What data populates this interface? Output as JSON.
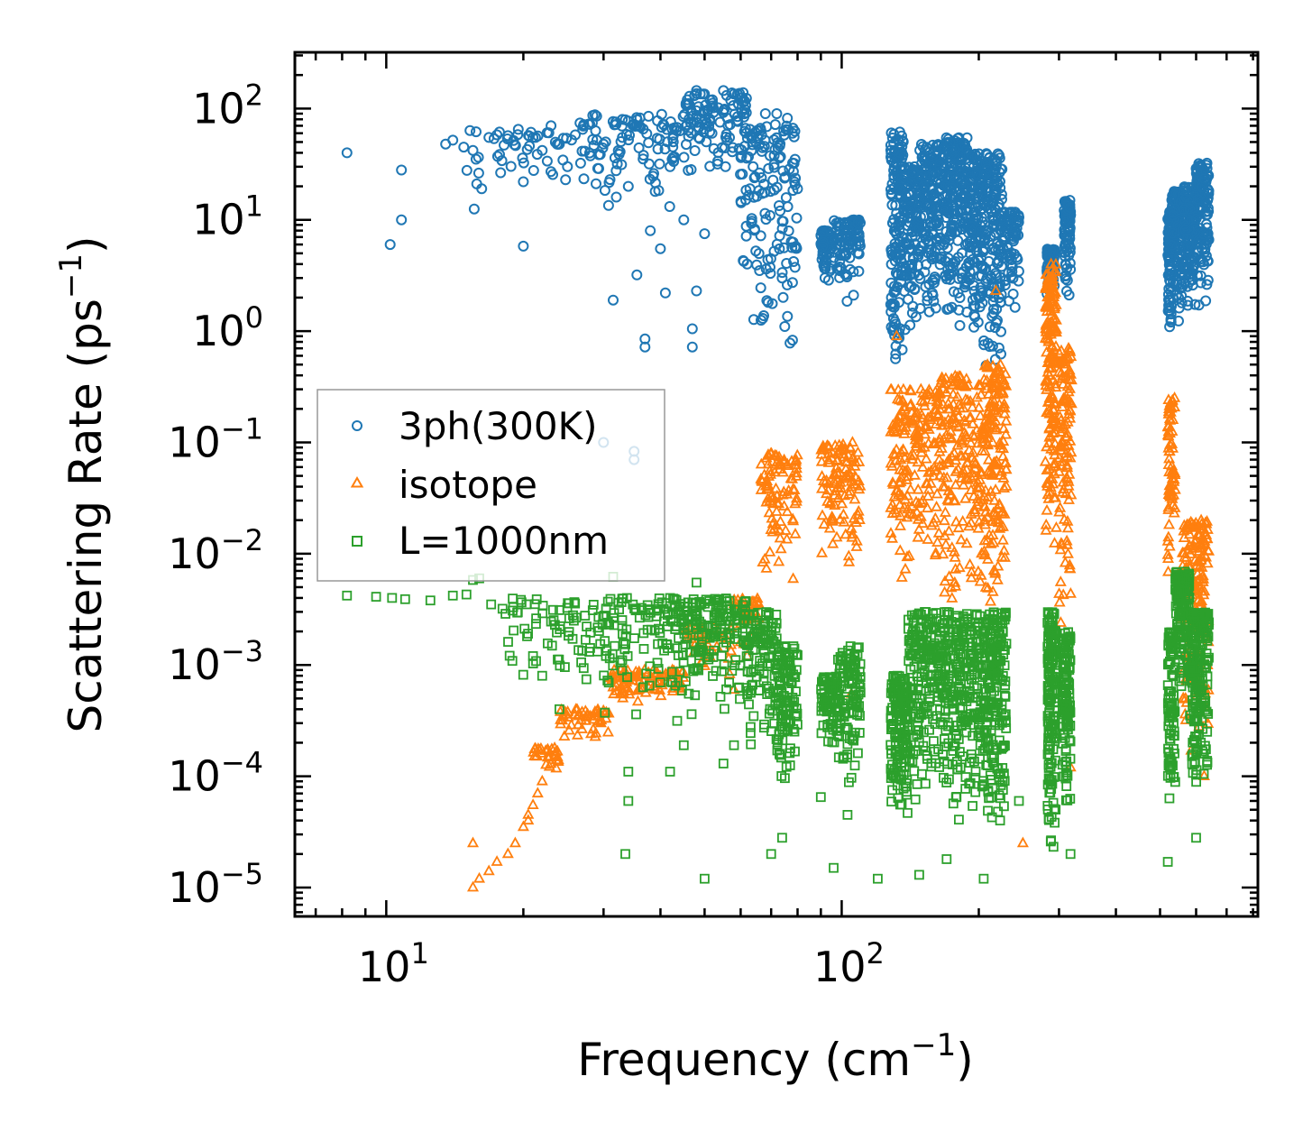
{
  "chart_data": {
    "type": "scatter",
    "xscale": "log",
    "yscale": "log",
    "xlim": [
      6.3,
      820
    ],
    "ylim": [
      5.5e-06,
      320
    ],
    "xlabel": "Frequency (cm",
    "xlabel_sup": "−1",
    "xlabel_end": ")",
    "ylabel": "Scattering Rate (ps",
    "ylabel_sup": "−1",
    "ylabel_end": ")",
    "x_ticks": [
      {
        "value": 10,
        "base": "10",
        "exp": "1"
      },
      {
        "value": 100,
        "base": "10",
        "exp": "2"
      }
    ],
    "y_ticks": [
      {
        "value": 100,
        "base": "10",
        "exp": "2"
      },
      {
        "value": 10,
        "base": "10",
        "exp": "1"
      },
      {
        "value": 1,
        "base": "10",
        "exp": "0"
      },
      {
        "value": 0.1,
        "base": "10",
        "exp": "−1"
      },
      {
        "value": 0.01,
        "base": "10",
        "exp": "−2"
      },
      {
        "value": 0.001,
        "base": "10",
        "exp": "−3"
      },
      {
        "value": 0.0001,
        "base": "10",
        "exp": "−4"
      },
      {
        "value": 1e-05,
        "base": "10",
        "exp": "−5"
      }
    ],
    "legend_position": "center-left",
    "series": [
      {
        "name": "3ph(300K)",
        "marker": "circle",
        "color": "#1f77b4",
        "points": [
          [
            8.2,
            40
          ],
          [
            10.2,
            6
          ],
          [
            10.8,
            28
          ],
          [
            10.8,
            10
          ],
          [
            13.5,
            48
          ],
          [
            14,
            52
          ],
          [
            14.8,
            45
          ],
          [
            15.5,
            42
          ],
          [
            15.6,
            12.5
          ],
          [
            15.8,
            21
          ],
          [
            16.2,
            19
          ],
          [
            16.8,
            55
          ],
          [
            17.5,
            58
          ],
          [
            18.5,
            57
          ],
          [
            19.5,
            65
          ],
          [
            20,
            22
          ],
          [
            20,
            5.8
          ],
          [
            21,
            55
          ],
          [
            22,
            42
          ],
          [
            23,
            70
          ],
          [
            24,
            48
          ],
          [
            25,
            30
          ],
          [
            26,
            58
          ],
          [
            27,
            65
          ],
          [
            28,
            72
          ],
          [
            29,
            52
          ],
          [
            30,
            48
          ],
          [
            30,
            0.1
          ],
          [
            31,
            23
          ],
          [
            31.5,
            1.9
          ],
          [
            32,
            16
          ],
          [
            33,
            55
          ],
          [
            34,
            20
          ],
          [
            35,
            0.083
          ],
          [
            35,
            0.07
          ],
          [
            35.5,
            3.2
          ],
          [
            37,
            0.85
          ],
          [
            37,
            0.72
          ],
          [
            38,
            8
          ],
          [
            40,
            5.5
          ],
          [
            41,
            2.2
          ],
          [
            42,
            30
          ],
          [
            45,
            10
          ],
          [
            47,
            1.05
          ],
          [
            47,
            0.72
          ],
          [
            48,
            2.3
          ],
          [
            48,
            145
          ],
          [
            50,
            7.5
          ],
          [
            52,
            120
          ],
          [
            55,
            145
          ],
          [
            58,
            135
          ],
          [
            60,
            125
          ],
          [
            62,
            4
          ],
          [
            66,
            3.5
          ],
          [
            68,
            90
          ],
          [
            72,
            90
          ],
          [
            74,
            3
          ],
          [
            75,
            1.1
          ],
          [
            76,
            82
          ],
          [
            77,
            0.78
          ],
          [
            78,
            0.83
          ],
          [
            78,
            60
          ],
          [
            79,
            35
          ],
          [
            80,
            19
          ]
        ],
        "clusters": [
          [
            15,
            18,
            20,
            70,
            12,
            0.45
          ],
          [
            18,
            28,
            14,
            75,
            40,
            0.4
          ],
          [
            28,
            45,
            10,
            90,
            90,
            0.35
          ],
          [
            45,
            62,
            12,
            140,
            110,
            0.35
          ],
          [
            60,
            80,
            1.0,
            80,
            140,
            0.6
          ],
          [
            90,
            95,
            2.0,
            8,
            80,
            0.3
          ],
          [
            96,
            110,
            1.7,
            10,
            90,
            0.3
          ],
          [
            128,
            137,
            0.5,
            62,
            140,
            0.7
          ],
          [
            137,
            148,
            1.0,
            30,
            120,
            0.55
          ],
          [
            148,
            168,
            0.9,
            48,
            170,
            0.5
          ],
          [
            168,
            190,
            0.9,
            55,
            200,
            0.5
          ],
          [
            190,
            205,
            0.6,
            40,
            130,
            0.55
          ],
          [
            205,
            225,
            0.45,
            40,
            150,
            0.55
          ],
          [
            225,
            245,
            1.0,
            12,
            70,
            0.4
          ],
          [
            282,
            294,
            1.8,
            5.5,
            70,
            0.4
          ],
          [
            308,
            318,
            1.5,
            15,
            90,
            0.4
          ],
          [
            520,
            530,
            0.9,
            12,
            80,
            0.5
          ],
          [
            530,
            560,
            1.2,
            18,
            120,
            0.45
          ],
          [
            560,
            600,
            1.3,
            20,
            140,
            0.45
          ],
          [
            600,
            640,
            1.4,
            33,
            120,
            0.45
          ]
        ]
      },
      {
        "name": "isotope",
        "marker": "triangle",
        "color": "#ff7f0e",
        "points": [
          [
            15.5,
            1e-05
          ],
          [
            16,
            1.2e-05
          ],
          [
            16.8,
            1.4e-05
          ],
          [
            17.5,
            1.7e-05
          ],
          [
            18.5,
            2e-05
          ],
          [
            19.2,
            2.5e-05
          ],
          [
            20,
            3.5e-05
          ],
          [
            20.5,
            4.5e-05
          ],
          [
            21,
            5.5e-05
          ],
          [
            21.5,
            7e-05
          ],
          [
            22,
            9e-05
          ],
          [
            15.5,
            2.5e-05
          ],
          [
            20.5,
            4e-05
          ],
          [
            58,
            0.0006
          ],
          [
            62,
            0.0012
          ],
          [
            105,
            0.00055
          ],
          [
            132,
            0.9
          ],
          [
            218,
            2.3
          ],
          [
            250,
            2.5e-05
          ],
          [
            318,
            0.00012
          ],
          [
            538,
            0.25
          ],
          [
            585,
            0.00017
          ],
          [
            625,
            0.0001
          ]
        ],
        "clusters": [
          [
            21,
            24,
            9e-05,
            0.00018,
            30,
            0.3
          ],
          [
            24,
            31,
            0.00016,
            0.0004,
            50,
            0.3
          ],
          [
            31,
            37,
            0.00035,
            0.0009,
            50,
            0.3
          ],
          [
            37,
            45,
            0.00035,
            0.0009,
            45,
            0.3
          ],
          [
            45,
            58,
            0.0006,
            0.0022,
            45,
            0.3
          ],
          [
            58,
            66,
            0.0012,
            0.004,
            40,
            0.3
          ],
          [
            66,
            80,
            0.004,
            0.08,
            90,
            0.4
          ],
          [
            90,
            110,
            0.006,
            0.1,
            120,
            0.45
          ],
          [
            128,
            165,
            0.004,
            0.3,
            200,
            0.5
          ],
          [
            165,
            205,
            0.003,
            0.4,
            190,
            0.5
          ],
          [
            205,
            230,
            0.003,
            0.5,
            160,
            0.55
          ],
          [
            280,
            296,
            0.01,
            4,
            170,
            0.55
          ],
          [
            300,
            320,
            0.002,
            0.7,
            110,
            0.55
          ],
          [
            520,
            540,
            0.005,
            0.25,
            70,
            0.55
          ],
          [
            560,
            640,
            0.0002,
            0.02,
            180,
            0.55
          ]
        ]
      },
      {
        "name": "L=1000nm",
        "marker": "square",
        "color": "#2ca02c",
        "points": [
          [
            8.2,
            0.0042
          ],
          [
            9.5,
            0.0041
          ],
          [
            10.3,
            0.004
          ],
          [
            11,
            0.0039
          ],
          [
            12.5,
            0.0038
          ],
          [
            14,
            0.0042
          ],
          [
            15,
            0.0043
          ],
          [
            15.5,
            0.0058
          ],
          [
            16,
            0.006
          ],
          [
            17,
            0.0035
          ],
          [
            18,
            0.0032
          ],
          [
            19,
            0.0033
          ],
          [
            31.5,
            0.0062
          ],
          [
            21,
            0.0012
          ],
          [
            22,
            0.0008
          ],
          [
            24,
            0.0004
          ],
          [
            34,
            0.00011
          ],
          [
            34,
            6e-05
          ],
          [
            33.5,
            2e-05
          ],
          [
            48,
            0.0055
          ],
          [
            50,
            1.2e-05
          ],
          [
            42,
            0.00011
          ],
          [
            45,
            0.00019
          ],
          [
            55,
            0.00013
          ],
          [
            58,
            0.00019
          ],
          [
            70,
            2e-05
          ],
          [
            74,
            2.8e-05
          ],
          [
            90,
            6.5e-05
          ],
          [
            96,
            1.5e-05
          ],
          [
            103,
            4.5e-05
          ],
          [
            120,
            1.2e-05
          ],
          [
            148,
            1.3e-05
          ],
          [
            170,
            1.8e-05
          ],
          [
            205,
            1.2e-05
          ],
          [
            245,
            6e-05
          ],
          [
            318,
            2e-05
          ],
          [
            520,
            1.7e-05
          ],
          [
            600,
            2.8e-05
          ]
        ],
        "clusters": [
          [
            18,
            30,
            0.00045,
            0.004,
            70,
            0.4
          ],
          [
            30,
            45,
            0.00025,
            0.004,
            120,
            0.4
          ],
          [
            45,
            62,
            0.0003,
            0.004,
            160,
            0.4
          ],
          [
            62,
            72,
            0.00015,
            0.003,
            110,
            0.45
          ],
          [
            72,
            80,
            6e-05,
            0.0015,
            110,
            0.5
          ],
          [
            90,
            98,
            0.00015,
            0.0008,
            80,
            0.5
          ],
          [
            98,
            110,
            8e-05,
            0.0015,
            110,
            0.5
          ],
          [
            128,
            140,
            3.5e-05,
            0.0008,
            160,
            0.6
          ],
          [
            140,
            170,
            5e-05,
            0.003,
            220,
            0.55
          ],
          [
            170,
            205,
            4e-05,
            0.003,
            220,
            0.55
          ],
          [
            205,
            230,
            3e-05,
            0.003,
            200,
            0.55
          ],
          [
            283,
            295,
            2e-05,
            0.003,
            160,
            0.55
          ],
          [
            305,
            318,
            5e-05,
            0.002,
            120,
            0.55
          ],
          [
            520,
            540,
            5e-05,
            0.002,
            90,
            0.55
          ],
          [
            540,
            580,
            0.0005,
            0.007,
            140,
            0.5
          ],
          [
            580,
            640,
            8e-05,
            0.003,
            200,
            0.55
          ]
        ]
      }
    ]
  }
}
